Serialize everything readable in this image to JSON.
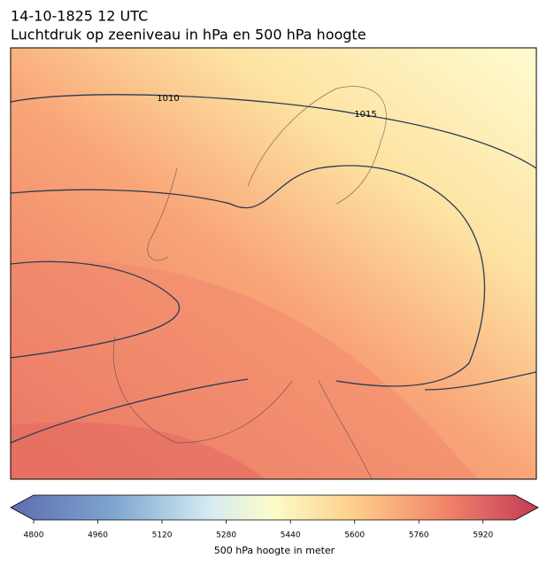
{
  "header": {
    "title": "14-10-1825 12 UTC",
    "subtitle": "Luchtdruk op zeeniveau in hPa en 500 hPa hoogte"
  },
  "map": {
    "isobar_labels": [
      "1010",
      "1015"
    ]
  },
  "colorbar": {
    "label": "500 hPa hoogte in meter",
    "lim": [
      4800,
      6000
    ],
    "ticks": [
      4800,
      4960,
      5120,
      5280,
      5440,
      5600,
      5760,
      5920
    ]
  }
}
